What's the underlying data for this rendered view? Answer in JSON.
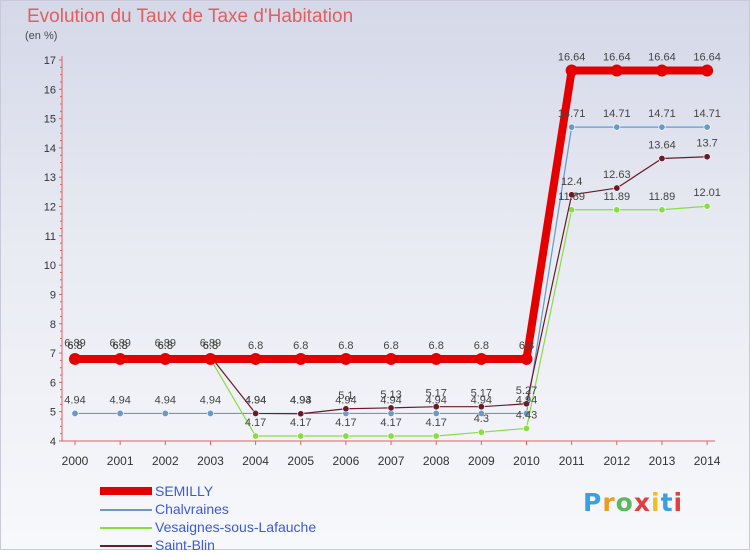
{
  "chart_data": {
    "type": "line",
    "title": "Evolution du Taux de Taxe d'Habitation",
    "subtitle": "(en %)",
    "x": [
      "2000",
      "2001",
      "2002",
      "2003",
      "2004",
      "2005",
      "2006",
      "2007",
      "2008",
      "2009",
      "2010",
      "2011",
      "2012",
      "2013",
      "2014"
    ],
    "ylim": [
      4,
      17
    ],
    "yticks": [
      4,
      5,
      6,
      7,
      8,
      9,
      10,
      11,
      12,
      13,
      14,
      15,
      16,
      17
    ],
    "grid": false,
    "legend_position": "bottom-left",
    "series": [
      {
        "name": "SEMILLY",
        "color": "#e50000",
        "values": [
          6.8,
          6.8,
          6.8,
          6.8,
          6.8,
          6.8,
          6.8,
          6.8,
          6.8,
          6.8,
          6.8,
          16.64,
          16.64,
          16.64,
          16.64
        ],
        "labels": [
          "6.8",
          "6.8",
          "6.8",
          "6.8",
          "6.8",
          "6.8",
          "6.8",
          "6.8",
          "6.8",
          "6.8",
          "6.8",
          "16.64",
          "16.64",
          "16.64",
          "16.64"
        ]
      },
      {
        "name": "Chalvraines",
        "color": "#6699cc",
        "values": [
          4.94,
          4.94,
          4.94,
          4.94,
          4.94,
          4.94,
          4.94,
          4.94,
          4.94,
          4.94,
          4.94,
          14.71,
          14.71,
          14.71,
          14.71
        ],
        "labels": [
          "4.94",
          "4.94",
          "4.94",
          "4.94",
          "4.94",
          "4.94",
          "4.94",
          "4.94",
          "4.94",
          "4.94",
          "4.94",
          "14.71",
          "14.71",
          "14.71",
          "14.71"
        ]
      },
      {
        "name": "Vesaignes-sous-Lafauche",
        "color": "#88dd44",
        "values": [
          6.8,
          6.8,
          6.8,
          6.8,
          4.17,
          4.17,
          4.17,
          4.17,
          4.17,
          4.3,
          4.43,
          11.89,
          11.89,
          11.89,
          12.01
        ],
        "labels": [
          "6.8",
          "6.8",
          "6.8",
          "6.8",
          "4.17",
          "4.17",
          "4.17",
          "4.17",
          "4.17",
          "4.3",
          "4.43",
          "11.89",
          "11.89",
          "11.89",
          "12.01"
        ]
      },
      {
        "name": "Saint-Blin",
        "color": "#6a1a28",
        "values": [
          6.89,
          6.89,
          6.89,
          6.89,
          4.94,
          4.93,
          5.1,
          5.13,
          5.17,
          5.17,
          5.27,
          12.4,
          12.63,
          13.64,
          13.7
        ],
        "labels": [
          "6.89",
          "6.89",
          "6.89",
          "6.89",
          "4.94",
          "4.93",
          "5.1",
          "5.13",
          "5.17",
          "5.17",
          "5.27",
          "12.4",
          "12.63",
          "13.64",
          "13.7"
        ]
      }
    ]
  },
  "branding": {
    "logo_text": "Proxiti",
    "logo_colors": [
      "#3aa0e0",
      "#e8a020",
      "#5cb85c",
      "#e04040",
      "#f0c020",
      "#3aa0e0",
      "#e04040"
    ]
  }
}
